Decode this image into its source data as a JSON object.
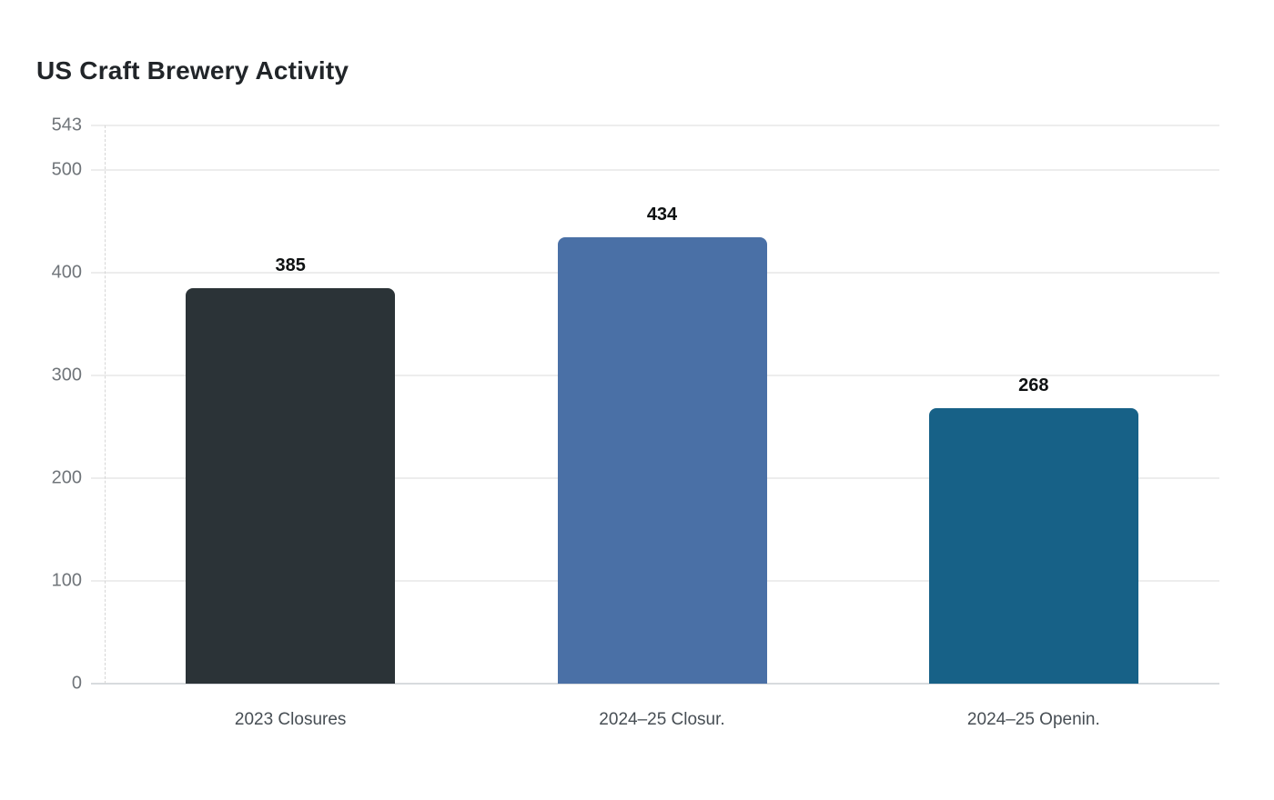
{
  "page": {
    "background_color": "#ffffff"
  },
  "chart_data": {
    "type": "bar",
    "title": "US Craft Brewery Activity",
    "categories": [
      "2023 Closures",
      "2024–25 Closur.",
      "2024–25 Openin."
    ],
    "values": [
      385,
      434,
      268
    ],
    "value_labels": [
      "385",
      "434",
      "268"
    ],
    "bar_colors": [
      "#2b3337",
      "#4a70a6",
      "#176187"
    ],
    "yticks": [
      543,
      500,
      400,
      300,
      200,
      100,
      0
    ],
    "ytick_labels": [
      "543",
      "500",
      "400",
      "300",
      "200",
      "100",
      "0"
    ],
    "ylim": [
      0,
      543
    ],
    "xlabel": "",
    "ylabel": "",
    "grid": true,
    "legend": false,
    "colors": {
      "title_text": "#212529",
      "value_label_text": "#0e1112",
      "category_label_text": "#474e54",
      "ytick_text": "#70757a",
      "gridline": "#ededed",
      "axis_line": "#d8dbde",
      "y_axis_dashed_line": "#d6d6d6"
    }
  }
}
